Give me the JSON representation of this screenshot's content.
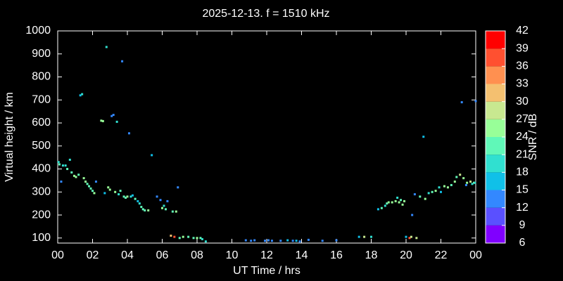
{
  "chart_data": {
    "type": "scatter",
    "title": "2025-12-13. f = 1510 kHz",
    "xlabel": "UT Time / hrs",
    "ylabel": "Virtual height / km",
    "colorbar_label": "SNR / dB",
    "xlim": [
      0,
      24
    ],
    "ylim": [
      78,
      1000
    ],
    "xticks": [
      {
        "value": 0,
        "label": "00"
      },
      {
        "value": 2,
        "label": "02"
      },
      {
        "value": 4,
        "label": "04"
      },
      {
        "value": 6,
        "label": "06"
      },
      {
        "value": 8,
        "label": "08"
      },
      10,
      12,
      14,
      16,
      18,
      20,
      22,
      {
        "value": 24,
        "label": "00"
      }
    ],
    "yticks": [
      100,
      200,
      300,
      400,
      500,
      600,
      700,
      800,
      900,
      1000
    ],
    "colorbar_ticks": [
      6,
      9,
      12,
      15,
      18,
      21,
      24,
      27,
      30,
      33,
      36,
      39,
      42
    ],
    "colors": [
      "#8000ff",
      "#5a50ff",
      "#3388ff",
      "#10c0e8",
      "#30e0d0",
      "#60f8b8",
      "#98ff98",
      "#c8e890",
      "#f4c070",
      "#ff9050",
      "#ff5030",
      "#ff0000"
    ],
    "x": [
      0.05,
      0.1,
      0.2,
      0.3,
      0.45,
      0.55,
      0.7,
      0.8,
      0.95,
      1.05,
      1.2,
      1.3,
      1.4,
      1.5,
      1.6,
      1.7,
      1.8,
      1.9,
      2.0,
      2.1,
      2.2,
      2.5,
      2.6,
      2.7,
      2.8,
      2.9,
      3.0,
      3.1,
      3.2,
      3.3,
      3.4,
      3.5,
      3.6,
      3.7,
      3.8,
      3.9,
      4.0,
      4.1,
      4.2,
      4.3,
      4.45,
      4.6,
      4.7,
      4.8,
      4.9,
      5.0,
      5.2,
      5.4,
      5.7,
      5.9,
      6.0,
      6.1,
      6.2,
      6.3,
      6.5,
      6.7,
      6.6,
      6.8,
      6.9,
      7.0,
      7.2,
      7.5,
      7.8,
      8.0,
      8.2,
      8.3,
      8.5,
      10.8,
      11.1,
      11.3,
      11.9,
      12.1,
      12.3,
      12.8,
      13.2,
      13.5,
      13.7,
      13.9,
      14.4,
      15.2,
      16.0,
      17.3,
      17.6,
      18.0,
      18.4,
      18.6,
      18.8,
      18.9,
      19.0,
      19.2,
      19.4,
      19.5,
      19.6,
      19.7,
      19.8,
      19.9,
      20.0,
      20.2,
      20.3,
      20.35,
      20.5,
      20.6,
      20.8,
      21.0,
      21.1,
      21.3,
      21.5,
      21.7,
      21.9,
      22.0,
      22.2,
      22.4,
      22.6,
      22.8,
      22.9,
      23.1,
      23.3,
      23.5,
      23.7,
      23.9,
      23.2,
      23.45,
      23.8,
      24.0,
      23.95
    ],
    "y": [
      430,
      420,
      345,
      415,
      415,
      400,
      440,
      385,
      370,
      365,
      375,
      720,
      725,
      360,
      345,
      335,
      325,
      315,
      305,
      295,
      345,
      610,
      608,
      295,
      930,
      320,
      310,
      630,
      635,
      300,
      605,
      290,
      305,
      868,
      280,
      275,
      280,
      555,
      280,
      285,
      270,
      260,
      250,
      235,
      225,
      220,
      220,
      460,
      280,
      265,
      230,
      240,
      225,
      260,
      110,
      105,
      215,
      215,
      320,
      100,
      105,
      105,
      100,
      100,
      100,
      95,
      85,
      90,
      88,
      90,
      88,
      90,
      88,
      88,
      90,
      88,
      88,
      85,
      92,
      88,
      90,
      105,
      105,
      105,
      225,
      230,
      240,
      250,
      255,
      255,
      260,
      275,
      255,
      265,
      245,
      260,
      105,
      100,
      105,
      200,
      290,
      100,
      280,
      540,
      270,
      295,
      300,
      305,
      320,
      300,
      325,
      320,
      330,
      345,
      365,
      375,
      360,
      340,
      345,
      340,
      690,
      330,
      335,
      695,
      340
    ],
    "snr": [
      18,
      21,
      12,
      18,
      18,
      21,
      18,
      21,
      24,
      24,
      21,
      15,
      18,
      24,
      24,
      21,
      21,
      21,
      21,
      24,
      12,
      24,
      24,
      15,
      18,
      24,
      24,
      12,
      12,
      24,
      18,
      18,
      21,
      12,
      21,
      21,
      24,
      12,
      18,
      15,
      21,
      15,
      18,
      21,
      21,
      21,
      24,
      15,
      12,
      12,
      24,
      18,
      21,
      12,
      30,
      36,
      21,
      24,
      12,
      21,
      24,
      21,
      21,
      24,
      21,
      18,
      18,
      12,
      12,
      12,
      12,
      12,
      12,
      12,
      15,
      12,
      15,
      12,
      12,
      12,
      12,
      15,
      27,
      18,
      15,
      21,
      18,
      21,
      24,
      24,
      24,
      18,
      24,
      21,
      24,
      24,
      15,
      36,
      27,
      12,
      12,
      27,
      21,
      15,
      24,
      18,
      21,
      24,
      18,
      15,
      24,
      24,
      21,
      24,
      21,
      27,
      24,
      24,
      27,
      24,
      12,
      12,
      18,
      12,
      18
    ]
  }
}
